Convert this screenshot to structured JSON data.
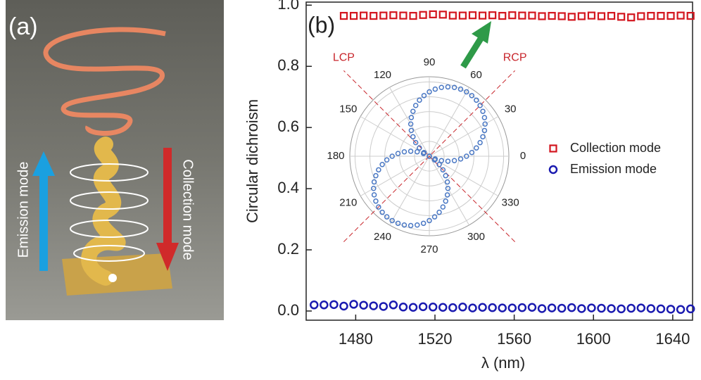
{
  "panel_a": {
    "label": "(a)",
    "emission": "Emission mode",
    "collection": "Collection mode"
  },
  "chart_data": [
    {
      "type": "scatter",
      "panel_label": "(b)",
      "x_label": "λ (nm)",
      "y_label": "Circular dichroism",
      "xlim": [
        1455,
        1650
      ],
      "ylim": [
        -0.03,
        1.01
      ],
      "xticks": [
        1480,
        1520,
        1560,
        1600,
        1640
      ],
      "yticks": [
        {
          "value": 0,
          "label": "0.0"
        },
        0.2,
        0.4,
        0.6,
        0.8,
        {
          "value": 1,
          "label": "1.0"
        }
      ],
      "legend": "right",
      "series": [
        {
          "name": "Collection mode",
          "color": "#d3151e",
          "marker": "square",
          "x": [
            1474,
            1479,
            1484,
            1489,
            1494,
            1499,
            1504,
            1509,
            1514,
            1519,
            1524,
            1529,
            1534,
            1539,
            1544,
            1549,
            1554,
            1559,
            1564,
            1569,
            1574,
            1579,
            1584,
            1589,
            1594,
            1599,
            1604,
            1609,
            1614,
            1619,
            1624,
            1629,
            1634,
            1639,
            1644,
            1649
          ],
          "values": [
            0.965,
            0.965,
            0.966,
            0.965,
            0.966,
            0.967,
            0.966,
            0.965,
            0.968,
            0.97,
            0.969,
            0.966,
            0.966,
            0.967,
            0.966,
            0.967,
            0.965,
            0.967,
            0.966,
            0.966,
            0.964,
            0.965,
            0.964,
            0.962,
            0.964,
            0.966,
            0.964,
            0.965,
            0.962,
            0.96,
            0.964,
            0.965,
            0.965,
            0.965,
            0.966,
            0.965
          ]
        },
        {
          "name": "Emission mode",
          "color": "#1a1ab0",
          "marker": "circle",
          "x": [
            1459,
            1464,
            1469,
            1474,
            1479,
            1484,
            1489,
            1494,
            1499,
            1504,
            1509,
            1514,
            1519,
            1524,
            1529,
            1534,
            1539,
            1544,
            1549,
            1554,
            1559,
            1564,
            1569,
            1574,
            1579,
            1584,
            1589,
            1594,
            1599,
            1604,
            1609,
            1614,
            1619,
            1624,
            1629,
            1634,
            1639,
            1644,
            1649
          ],
          "values": [
            0.02,
            0.02,
            0.021,
            0.016,
            0.022,
            0.019,
            0.017,
            0.015,
            0.02,
            0.013,
            0.012,
            0.014,
            0.013,
            0.012,
            0.011,
            0.013,
            0.01,
            0.012,
            0.011,
            0.01,
            0.01,
            0.011,
            0.012,
            0.008,
            0.01,
            0.009,
            0.011,
            0.008,
            0.01,
            0.009,
            0.008,
            0.007,
            0.009,
            0.01,
            0.008,
            0.007,
            0.006,
            0.005,
            0.007
          ]
        }
      ]
    },
    {
      "type": "polar",
      "rlim": [
        0,
        1.07
      ],
      "rticks": [
        0.2,
        0.4,
        0.6,
        0.8,
        1.0
      ],
      "thetaticks": [
        0,
        30,
        60,
        90,
        120,
        150,
        180,
        210,
        240,
        270,
        300,
        330
      ],
      "annotations": [
        {
          "text": "LCP",
          "angle": 135
        },
        {
          "text": "RCP",
          "angle": 45
        }
      ],
      "color": "#4a78c4",
      "theta": [
        0,
        5,
        10,
        15,
        20,
        25,
        30,
        35,
        40,
        45,
        50,
        55,
        60,
        65,
        70,
        75,
        80,
        85,
        90,
        95,
        100,
        105,
        110,
        115,
        120,
        125,
        130,
        135,
        140,
        145,
        150,
        155,
        160,
        165,
        170,
        175,
        180,
        185,
        190,
        195,
        200,
        205,
        210,
        215,
        220,
        225,
        230,
        235,
        240,
        245,
        250,
        255,
        260,
        265,
        270,
        275,
        280,
        285,
        290,
        295,
        300,
        305,
        310,
        315,
        320,
        325,
        330,
        335,
        340,
        345,
        350,
        355
      ],
      "values": [
        0.5,
        0.574,
        0.643,
        0.707,
        0.766,
        0.819,
        0.866,
        0.906,
        0.94,
        0.966,
        0.985,
        0.996,
        1,
        0.996,
        0.985,
        0.966,
        0.94,
        0.906,
        0.866,
        0.819,
        0.766,
        0.707,
        0.643,
        0.574,
        0.5,
        0.423,
        0.342,
        0.259,
        0.174,
        0.087,
        0,
        0.087,
        0.174,
        0.259,
        0.342,
        0.423,
        0.5,
        0.574,
        0.643,
        0.707,
        0.766,
        0.819,
        0.866,
        0.906,
        0.94,
        0.966,
        0.985,
        0.996,
        1,
        0.996,
        0.985,
        0.966,
        0.94,
        0.906,
        0.866,
        0.819,
        0.766,
        0.707,
        0.643,
        0.574,
        0.5,
        0.423,
        0.342,
        0.259,
        0.174,
        0.087,
        0,
        0.087,
        0.174,
        0.259,
        0.342,
        0.423
      ]
    }
  ]
}
